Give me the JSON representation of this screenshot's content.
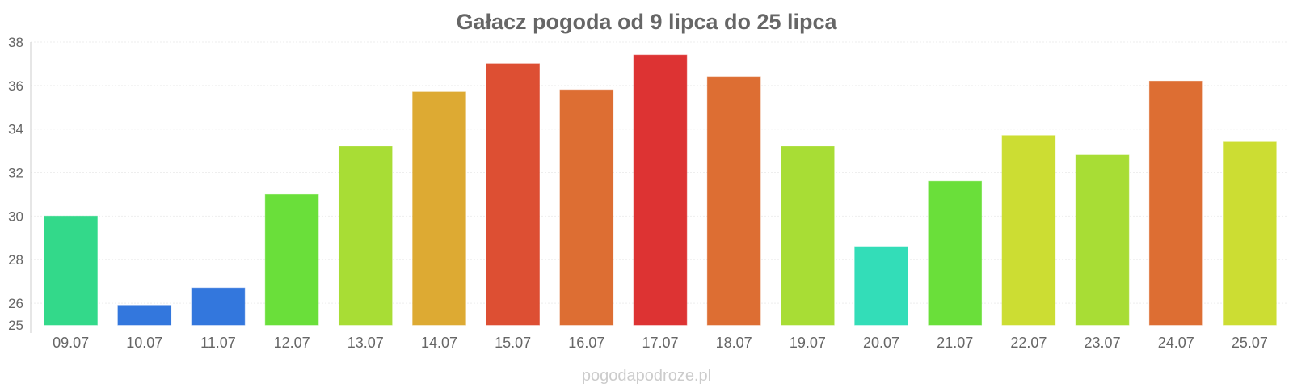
{
  "chart_data": {
    "type": "bar",
    "title": "Gałacz pogoda od 9 lipca do 25 lipca",
    "xlabel": "",
    "ylabel": "",
    "categories": [
      "09.07",
      "10.07",
      "11.07",
      "12.07",
      "13.07",
      "14.07",
      "15.07",
      "16.07",
      "17.07",
      "18.07",
      "19.07",
      "20.07",
      "21.07",
      "22.07",
      "23.07",
      "24.07",
      "25.07"
    ],
    "values": [
      30,
      25.9,
      26.7,
      31,
      33.2,
      35.7,
      37,
      35.8,
      37.4,
      36.4,
      33.2,
      28.6,
      31.6,
      33.7,
      32.8,
      36.2,
      33.4
    ],
    "colors": [
      "#33d98a",
      "#3377dd",
      "#3377dd",
      "#6adf3a",
      "#a8dd35",
      "#ddaa33",
      "#dd4f33",
      "#dd6e33",
      "#dd3333",
      "#dd6e33",
      "#a8dd35",
      "#33ddb8",
      "#6adf3a",
      "#ccdd33",
      "#a8dd35",
      "#dd6e33",
      "#ccdd33"
    ],
    "ylim": [
      25,
      38
    ],
    "yticks": [
      25,
      26,
      28,
      30,
      32,
      34,
      36,
      38
    ],
    "grid": true,
    "legend": "none"
  },
  "footer": "pogodapodroze.pl"
}
